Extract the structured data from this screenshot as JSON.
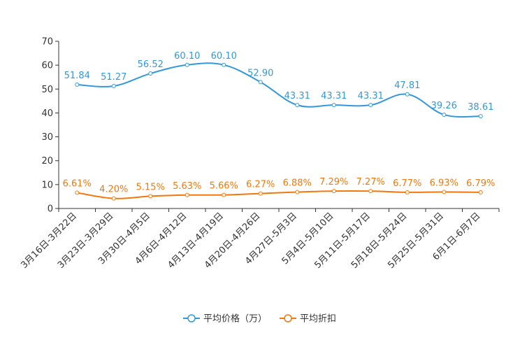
{
  "chart_data": {
    "type": "line",
    "title": "",
    "xlabel": "",
    "ylabel": "",
    "ylim": [
      0,
      70
    ],
    "yticks": [
      0,
      10,
      20,
      30,
      40,
      50,
      60,
      70
    ],
    "grid": false,
    "legend_position": "bottom-center",
    "categories": [
      "3月16日-3月22日",
      "3月23日-3月29日",
      "3月30日-4月5日",
      "4月6日-4月12日",
      "4月13日-4月19日",
      "4月20日-4月26日",
      "4月27日-5月3日",
      "5月4日-5月10日",
      "5月11日-5月17日",
      "5月18日-5月24日",
      "5月25日-5月31日",
      "6月1日-6月7日"
    ],
    "series": [
      {
        "name": "平均价格（万）",
        "color": "#3398DB",
        "values": [
          51.84,
          51.27,
          56.52,
          60.1,
          60.1,
          52.9,
          43.31,
          43.31,
          43.31,
          47.81,
          39.26,
          38.61
        ],
        "labels": [
          "51.84",
          "51.27",
          "56.52",
          "60.10",
          "60.10",
          "52.90",
          "43.31",
          "43.31",
          "43.31",
          "47.81",
          "39.26",
          "38.61"
        ]
      },
      {
        "name": "平均折扣",
        "color": "#F2780C",
        "values": [
          6.61,
          4.2,
          5.15,
          5.63,
          5.66,
          6.27,
          6.88,
          7.29,
          7.27,
          6.77,
          6.93,
          6.79
        ],
        "labels": [
          "6.61%",
          "4.20%",
          "5.15%",
          "5.63%",
          "5.66%",
          "6.27%",
          "6.88%",
          "7.29%",
          "7.27%",
          "6.77%",
          "6.93%",
          "6.79%"
        ]
      }
    ]
  }
}
